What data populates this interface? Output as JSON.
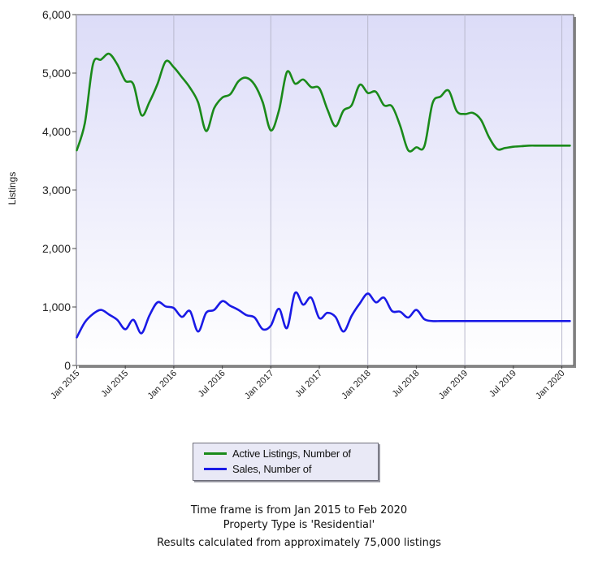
{
  "chart_data": {
    "type": "line",
    "ylabel": "Listings",
    "ylim": [
      0,
      6000
    ],
    "yticks": [
      0,
      1000,
      2000,
      3000,
      4000,
      5000,
      6000
    ],
    "ytick_labels": [
      "0",
      "1,000",
      "2,000",
      "3,000",
      "4,000",
      "5,000",
      "6,000"
    ],
    "x_start": "Jan 2015",
    "x_end": "Feb 2020",
    "x_tick_labels": [
      "Jan 2015",
      "Jul 2015",
      "Jan 2016",
      "Jul 2016",
      "Jan 2017",
      "Jul 2017",
      "Jan 2018",
      "Jul 2018",
      "Jan 2019",
      "Jul 2019",
      "Jan 2020"
    ],
    "grid": "vertical-at-january",
    "legend_position": "bottom",
    "x": [
      "Jan 2015",
      "Feb 2015",
      "Mar 2015",
      "Apr 2015",
      "May 2015",
      "Jun 2015",
      "Jul 2015",
      "Aug 2015",
      "Sep 2015",
      "Oct 2015",
      "Nov 2015",
      "Dec 2015",
      "Jan 2016",
      "Feb 2016",
      "Mar 2016",
      "Apr 2016",
      "May 2016",
      "Jun 2016",
      "Jul 2016",
      "Aug 2016",
      "Sep 2016",
      "Oct 2016",
      "Nov 2016",
      "Dec 2016",
      "Jan 2017",
      "Feb 2017",
      "Mar 2017",
      "Apr 2017",
      "May 2017",
      "Jun 2017",
      "Jul 2017",
      "Aug 2017",
      "Sep 2017",
      "Oct 2017",
      "Nov 2017",
      "Dec 2017",
      "Jan 2018",
      "Feb 2018",
      "Mar 2018",
      "Apr 2018",
      "May 2018",
      "Jun 2018",
      "Jul 2018",
      "Aug 2018",
      "Sep 2018",
      "Oct 2018",
      "Nov 2018",
      "Dec 2018",
      "Jan 2019",
      "Feb 2019",
      "Mar 2019",
      "Apr 2019",
      "May 2019",
      "Jun 2019",
      "Jul 2019",
      "Aug 2019",
      "Sep 2019",
      "Oct 2019",
      "Nov 2019",
      "Dec 2019",
      "Jan 2020",
      "Feb 2020"
    ],
    "series": [
      {
        "name": "Active Listings, Number of",
        "color": "#1a8a1a",
        "values": [
          3680,
          4150,
          5150,
          5230,
          5330,
          5150,
          4870,
          4810,
          4280,
          4510,
          4820,
          5200,
          5100,
          4930,
          4750,
          4500,
          4010,
          4400,
          4580,
          4640,
          4860,
          4920,
          4800,
          4500,
          4020,
          4360,
          5020,
          4820,
          4890,
          4760,
          4740,
          4380,
          4090,
          4360,
          4450,
          4800,
          4660,
          4680,
          4450,
          4430,
          4100,
          3680,
          3730,
          3750,
          4480,
          4600,
          4700,
          4350,
          4300,
          4320,
          4200,
          3900,
          3700,
          3720,
          3740,
          3750,
          3760,
          3760,
          3760,
          3760,
          3760,
          3760
        ]
      },
      {
        "name": "Sales, Number of",
        "color": "#1a1ae6",
        "values": [
          480,
          740,
          880,
          950,
          870,
          780,
          620,
          780,
          550,
          860,
          1080,
          1010,
          980,
          830,
          930,
          580,
          900,
          950,
          1100,
          1020,
          950,
          860,
          820,
          620,
          680,
          970,
          640,
          1240,
          1040,
          1160,
          810,
          900,
          830,
          580,
          850,
          1060,
          1230,
          1080,
          1160,
          930,
          920,
          820,
          950,
          790,
          760,
          760,
          760,
          760,
          760,
          760,
          760,
          760,
          760,
          760,
          760,
          760,
          760,
          760,
          760,
          760,
          760,
          760
        ]
      }
    ]
  },
  "legend": {
    "items": [
      {
        "label": "Active Listings, Number of",
        "color": "#1a8a1a"
      },
      {
        "label": "Sales, Number of",
        "color": "#1a1ae6"
      }
    ]
  },
  "footer": {
    "line1": "Time frame is from Jan 2015 to Feb 2020",
    "line2": "Property Type is 'Residential'",
    "line3": "Results calculated from approximately 75,000 listings"
  }
}
